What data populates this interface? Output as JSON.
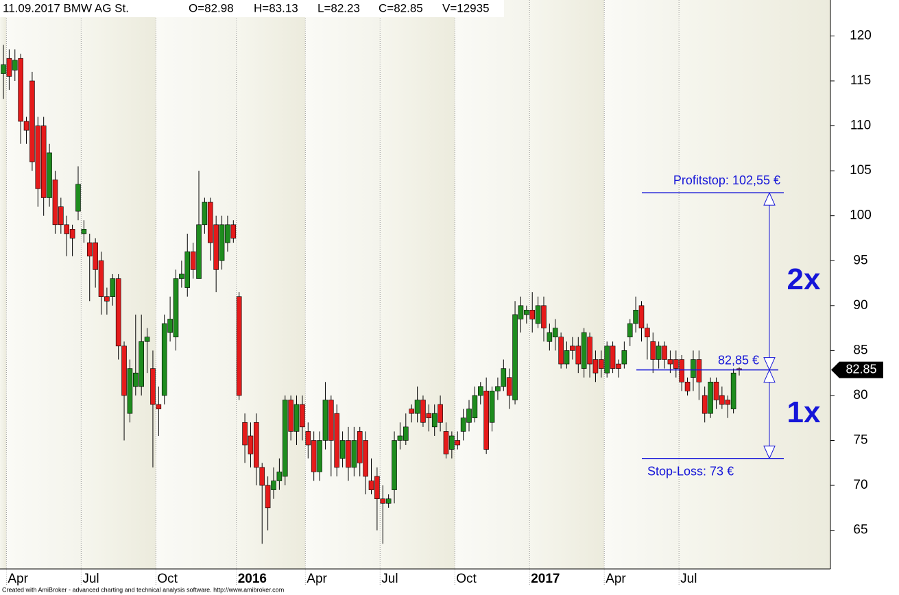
{
  "chart_data": {
    "type": "candlestick",
    "title": "11.09.2017 BMW AG St.",
    "ohlc_labels": [
      "O=82.98",
      "H=83.13",
      "L=82.23",
      "C=82.85",
      "V=12935"
    ],
    "footer": "Created with AmiBroker - advanced charting and technical analysis software. http://www.amibroker.com",
    "categories": [
      null,
      "Apr",
      null,
      null,
      null,
      null,
      null,
      null,
      null,
      null,
      null,
      null,
      null,
      null,
      "Jul",
      null,
      null,
      null,
      null,
      null,
      null,
      null,
      null,
      null,
      null,
      null,
      null,
      "Oct",
      null,
      null,
      null,
      null,
      null,
      null,
      null,
      null,
      null,
      null,
      null,
      null,
      null,
      "2016",
      null,
      null,
      null,
      null,
      null,
      null,
      null,
      null,
      null,
      null,
      null,
      "Apr",
      null,
      null,
      null,
      null,
      null,
      null,
      null,
      null,
      null,
      null,
      null,
      null,
      "Jul",
      null,
      null,
      null,
      null,
      null,
      null,
      null,
      null,
      null,
      null,
      null,
      null,
      "Oct",
      null,
      null,
      null,
      null,
      null,
      null,
      null,
      null,
      null,
      null,
      null,
      null,
      "2017",
      null,
      null,
      null,
      null,
      null,
      null,
      null,
      null,
      null,
      null,
      null,
      null,
      "Apr",
      null,
      null,
      null,
      null,
      null,
      null,
      null,
      null,
      null,
      null,
      null,
      null,
      "Jul",
      null,
      null,
      null,
      null,
      null,
      null,
      null,
      null,
      null,
      null
    ],
    "open": [
      115.8,
      117.5,
      116.2,
      117.5,
      110.5,
      115,
      110,
      110,
      102,
      104,
      101,
      99,
      98.5,
      100.5,
      98,
      97,
      97,
      95,
      91,
      91,
      93,
      85.5,
      78,
      81,
      81,
      86,
      83,
      79,
      80,
      87,
      86.5,
      93,
      92,
      96,
      93,
      99,
      101.5,
      99,
      95,
      97,
      99,
      91,
      77,
      75.5,
      77,
      72,
      70,
      69.5,
      70.5,
      71,
      79.5,
      76,
      79,
      76,
      75,
      71.5,
      75,
      79.5,
      78,
      73,
      75,
      72,
      76,
      75,
      70.5,
      71,
      68.5,
      68,
      69.5,
      75,
      75,
      78.5,
      78,
      79.5,
      78,
      76.5,
      79,
      76,
      74,
      75,
      76,
      77,
      77.5,
      80,
      80.5,
      77,
      80.5,
      81,
      82,
      79.5,
      88.5,
      89,
      89.5,
      88,
      90,
      86,
      86.5,
      86.5,
      83.5,
      85.5,
      85.5,
      83,
      86.5,
      84,
      84,
      82.5,
      85.5,
      83.5,
      83.5,
      86.5,
      88,
      90,
      87.5,
      86,
      84,
      85.5,
      84,
      84,
      84,
      81.5,
      82,
      84,
      80,
      78,
      81.5,
      80,
      79.5,
      78.5,
      82.98
    ],
    "high": [
      119,
      118.5,
      118.5,
      118,
      111,
      116,
      111,
      111,
      108,
      105,
      102,
      100,
      99,
      105.5,
      99.5,
      98,
      97.5,
      96,
      92,
      93.5,
      93.5,
      86,
      84,
      89,
      89,
      87.5,
      85,
      81,
      89,
      91,
      94,
      95,
      98,
      97,
      105,
      102,
      102,
      100,
      100,
      100,
      99.5,
      91.5,
      78,
      77,
      78,
      72.5,
      71,
      72,
      73,
      80,
      80,
      80,
      80,
      77,
      76,
      76,
      81.5,
      80,
      79,
      76,
      76.5,
      76.5,
      76.5,
      76,
      73,
      72,
      70,
      69,
      76,
      77,
      78,
      79,
      81,
      80,
      79,
      79,
      80,
      77,
      76,
      76,
      78.5,
      79.5,
      81,
      81.5,
      82,
      81,
      82,
      84,
      83,
      90.5,
      91,
      90,
      91.5,
      91,
      91,
      88,
      88.5,
      87,
      86,
      86.5,
      86.5,
      87.5,
      87,
      85,
      85,
      86,
      86,
      84,
      86,
      88.5,
      91,
      90.5,
      88,
      87,
      86,
      86,
      85,
      85,
      84.5,
      82,
      85,
      85,
      81,
      82,
      82,
      81,
      80,
      83,
      83.13
    ],
    "low": [
      113,
      114,
      115,
      108,
      108,
      105,
      101,
      100,
      101,
      98,
      98,
      95.5,
      95.5,
      99.5,
      97,
      90.5,
      92,
      89,
      89,
      90,
      84,
      75,
      77,
      80,
      80,
      82.5,
      72,
      75.5,
      79,
      86,
      85,
      92,
      91,
      93,
      93,
      98,
      95,
      91.5,
      94,
      96,
      97,
      79.5,
      72.5,
      72,
      70,
      63.5,
      65,
      68.5,
      69.5,
      70,
      75,
      74.5,
      75,
      73,
      70.5,
      70.5,
      74,
      71,
      71,
      72,
      70.5,
      71,
      71,
      69,
      69,
      65,
      63.5,
      67.5,
      68,
      74,
      74.5,
      77,
      77,
      76.5,
      76,
      75.5,
      76,
      73,
      73,
      74,
      75,
      76,
      77,
      79,
      73.5,
      76,
      79.5,
      80.5,
      78.5,
      79,
      87,
      88,
      87,
      87.5,
      86,
      85,
      85,
      83,
      83,
      84,
      82.5,
      82,
      82,
      81.5,
      82,
      82,
      82.5,
      82,
      83,
      85.5,
      87,
      86,
      84,
      82.5,
      83,
      83,
      82.5,
      82,
      80.5,
      80,
      80.5,
      79.5,
      77,
      77.5,
      78.5,
      78.5,
      77.5,
      78,
      82.23
    ],
    "close": [
      116.8,
      115.5,
      117.3,
      110.5,
      109.5,
      106,
      103,
      102,
      107,
      99,
      99,
      98,
      97.5,
      103.5,
      98.5,
      95.5,
      94,
      91,
      90.5,
      93,
      85.5,
      80,
      83,
      82.5,
      86,
      86.5,
      79,
      78.5,
      88,
      88.5,
      93,
      93.5,
      96,
      94,
      99,
      101.5,
      97,
      94,
      99,
      99,
      97.5,
      80,
      74.5,
      73.5,
      72,
      70,
      67.5,
      70.5,
      71.5,
      79.5,
      76,
      79,
      76.5,
      74.5,
      71.5,
      75,
      79.5,
      75,
      72,
      75,
      72,
      75,
      72.5,
      71,
      69.5,
      68.5,
      68,
      68.5,
      75,
      75.5,
      76.5,
      78,
      79.5,
      77,
      77.5,
      78,
      77,
      73.5,
      75.5,
      74.5,
      77.5,
      78.5,
      80,
      81,
      74,
      80.5,
      81,
      83,
      80,
      89,
      90,
      89.5,
      88.5,
      90,
      87.5,
      87,
      87.5,
      83.5,
      85,
      85,
      83.5,
      87,
      83.5,
      82.5,
      83,
      85.5,
      83,
      83,
      85,
      88,
      89.5,
      87.5,
      86.5,
      84,
      85.5,
      84,
      83.5,
      83,
      81.5,
      80.5,
      84,
      81.5,
      78,
      81.5,
      79.5,
      79,
      79,
      82.5,
      82.85
    ],
    "up_color": "#1e8c1e",
    "down_color": "#e51b1b",
    "ylim": [
      60.7,
      124
    ],
    "yticks": [
      65,
      70,
      75,
      80,
      85,
      90,
      95,
      100,
      105,
      110,
      115,
      120
    ],
    "annotations": [
      {
        "text": "Profitstop: 102,55 €",
        "value": 102.55
      },
      {
        "text": "82,85 €",
        "value": 82.85
      },
      {
        "text": "Stop-Loss: 73 €",
        "value": 73
      }
    ],
    "ratio_labels": [
      "2x",
      "1x"
    ],
    "annotation_color": "#1515d8",
    "last_price": 82.85
  }
}
